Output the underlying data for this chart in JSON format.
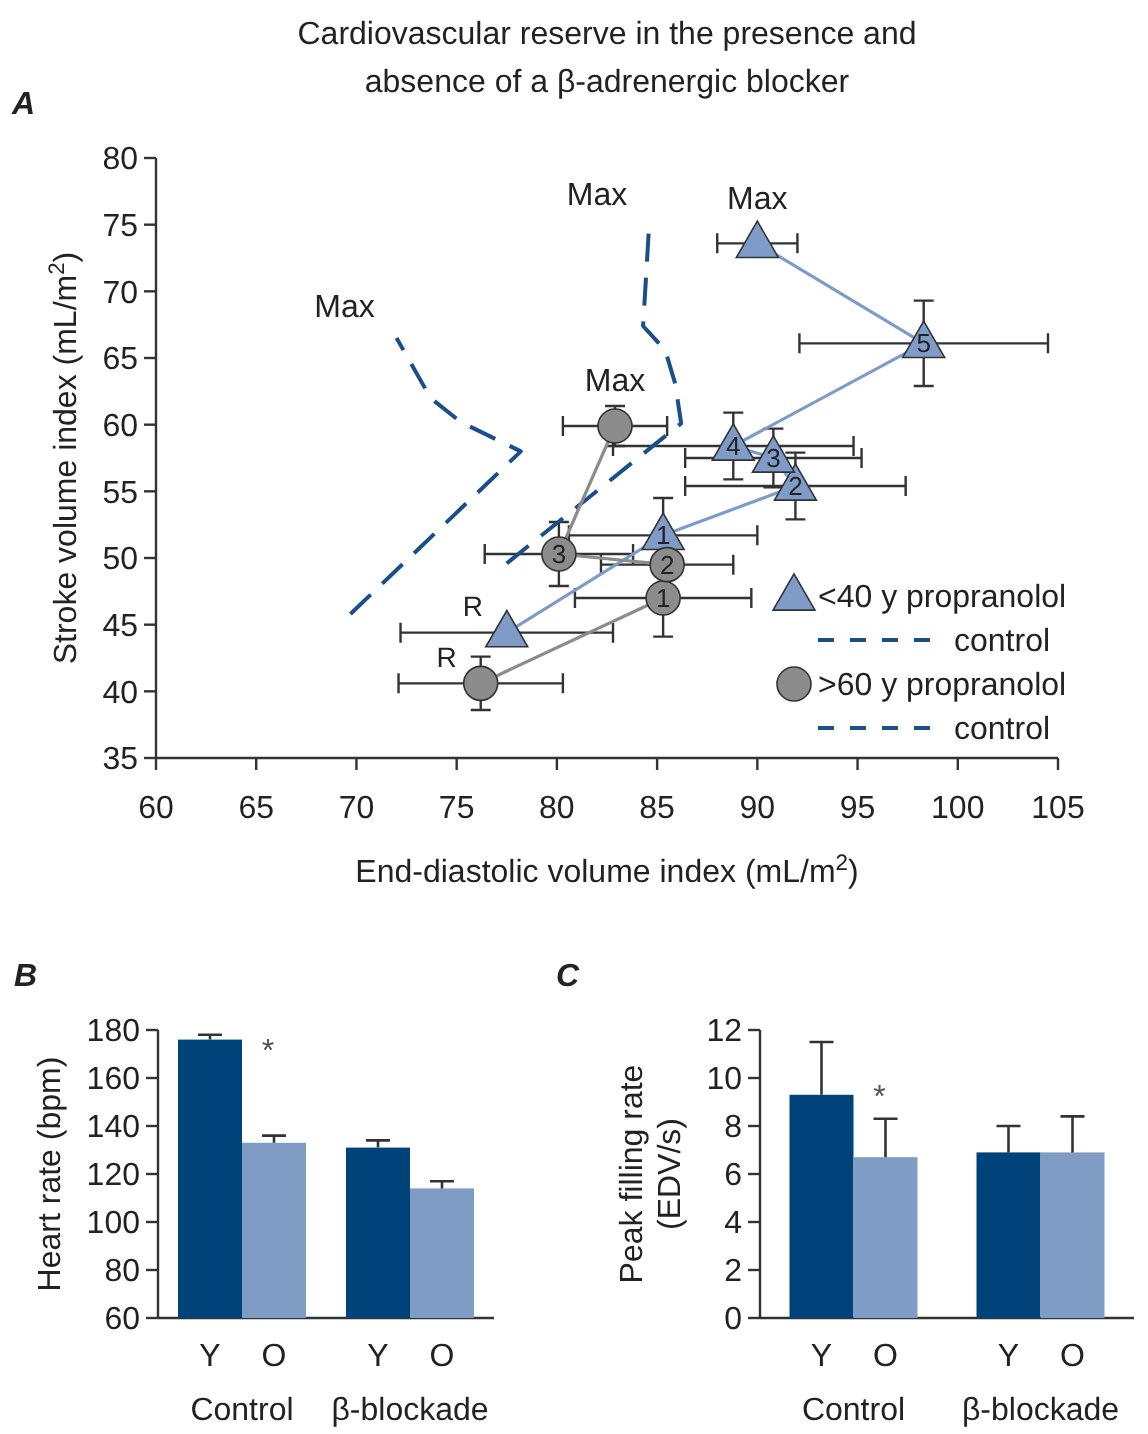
{
  "chart_data": [
    {
      "type": "scatter",
      "title": "Cardiovascular reserve in the presence and absence of a β-adrenergic blocker",
      "xlabel": "End-diastolic volume index (mL/m$^{2}$)",
      "ylabel": "Stroke volume index (mL/m$^{2}$)",
      "xlim": [
        60,
        105
      ],
      "xticks": [
        60,
        65,
        70,
        75,
        80,
        85,
        90,
        95,
        100,
        105
      ],
      "ylim": [
        35,
        80
      ],
      "yticks": [
        35,
        40,
        45,
        50,
        55,
        60,
        65,
        70,
        75,
        80
      ],
      "legend": "bottom right",
      "series": [
        {
          "name": "<40 y propranolol",
          "type": "line",
          "marker": "triangle",
          "color": "#7f9cc8",
          "x": [
            77.5,
            85.3,
            91.9,
            90.8,
            88.8,
            98.3,
            90.0
          ],
          "values": [
            44.4,
            51.7,
            55.4,
            57.5,
            58.4,
            66.1,
            73.6
          ],
          "xerrors": [
            5.3,
            4.7,
            5.5,
            4.4,
            6,
            6.2,
            2
          ],
          "errors": [
            null,
            2.8,
            2.5,
            2.2,
            2.5,
            3.2,
            null
          ]
        },
        {
          "name": "control",
          "type": "line",
          "marker": "none",
          "line_style": "dashed",
          "color": "#1a4f8a",
          "x": [
            77.5,
            86.2,
            85.9,
            85.4,
            84.3,
            84.6
          ],
          "values": [
            49.6,
            60.1,
            63.1,
            65.6,
            67.4,
            74.9
          ]
        },
        {
          "name": ">60 y propranolol",
          "type": "line",
          "marker": "circle",
          "color": "#8c8c8c",
          "x": [
            76.2,
            85.3,
            85.5,
            80.1,
            82.9
          ],
          "values": [
            40.6,
            47.0,
            49.5,
            50.3,
            59.9
          ],
          "xerrors": [
            4.1,
            4.4,
            3.3,
            3.7,
            2.6
          ],
          "errors": [
            2,
            2.9,
            null,
            2.4,
            1.5
          ]
        },
        {
          "name": "control",
          "type": "line",
          "marker": "none",
          "line_style": "dashed",
          "color": "#1a4f8a",
          "x": [
            69.7,
            78.2,
            75.2,
            73.7,
            72.0
          ],
          "values": [
            45.8,
            58.0,
            60.2,
            62.0,
            66.5
          ]
        }
      ],
      "annotations": [
        "A",
        {
          "text": "R",
          "x": 77.5,
          "y": 44.4
        },
        {
          "text": "1",
          "x": 85.3,
          "y": 51.7
        },
        {
          "text": "2",
          "x": 91.9,
          "y": 55.4
        },
        {
          "text": "3",
          "x": 90.8,
          "y": 57.5
        },
        {
          "text": "4",
          "x": 88.8,
          "y": 58.4
        },
        {
          "text": "5",
          "x": 98.3,
          "y": 66.1
        },
        {
          "text": "Max",
          "x": 90.0,
          "y": 73.6
        },
        {
          "text": "Max",
          "x": 84.6,
          "y": 74.9
        },
        {
          "text": "R",
          "x": 76.2,
          "y": 40.6
        },
        {
          "text": "1",
          "x": 85.3,
          "y": 47.0
        },
        {
          "text": "2",
          "x": 85.5,
          "y": 49.5
        },
        {
          "text": "3",
          "x": 80.1,
          "y": 50.3
        },
        {
          "text": "Max",
          "x": 82.9,
          "y": 59.9
        },
        {
          "text": "Max",
          "x": 72.0,
          "y": 66.5
        }
      ]
    },
    {
      "type": "bar",
      "ylabel": "Heart rate (bpm)",
      "categories": [
        "Control",
        "β-blockade"
      ],
      "ylim": [
        60,
        180
      ],
      "yticks": [
        60,
        80,
        100,
        120,
        140,
        160,
        180
      ],
      "series": [
        {
          "name": "Y",
          "color": "#00427a",
          "values": [
            176,
            131
          ],
          "errors": [
            2,
            3
          ]
        },
        {
          "name": "O",
          "color": "#7f9cc4",
          "values": [
            133,
            114
          ],
          "errors": [
            3,
            3
          ]
        }
      ],
      "annotations": [
        "B",
        {
          "text": "*",
          "x": "Control",
          "y": 175
        }
      ]
    },
    {
      "type": "bar",
      "ylabel": "Peak filling rate (EDV/s)",
      "categories": [
        "Control",
        "β-blockade"
      ],
      "ylim": [
        0,
        12
      ],
      "yticks": [
        0,
        2,
        4,
        6,
        8,
        10,
        12
      ],
      "series": [
        {
          "name": "Y",
          "color": "#00427a",
          "values": [
            9.3,
            6.9
          ],
          "errors": [
            2.2,
            1.1
          ]
        },
        {
          "name": "O",
          "color": "#7f9cc4",
          "values": [
            6.7,
            6.9
          ],
          "errors": [
            1.6,
            1.5
          ]
        }
      ],
      "annotations": [
        "C",
        {
          "text": "*",
          "x": "Control",
          "y": 9.6
        }
      ]
    }
  ]
}
